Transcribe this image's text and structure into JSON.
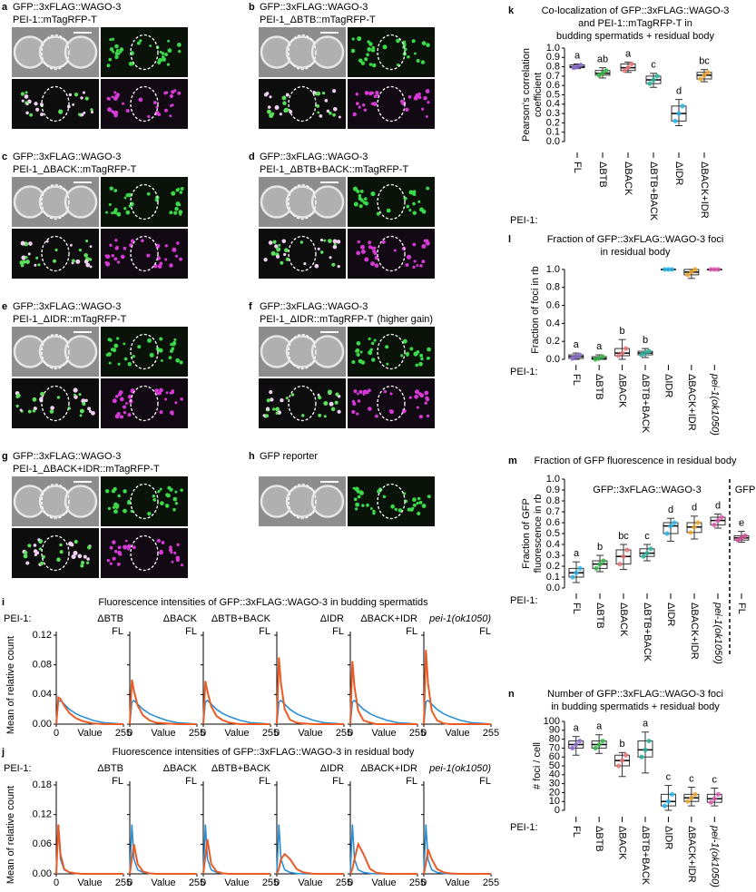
{
  "images": [
    {
      "label": "a",
      "lines": [
        "GFP::3xFLAG::WAGO-3",
        "PEI-1::mTagRFP-T"
      ]
    },
    {
      "label": "b",
      "lines": [
        "GFP::3xFLAG::WAGO-3",
        "PEI-1_ΔBTB::mTagRFP-T"
      ]
    },
    {
      "label": "c",
      "lines": [
        "GFP::3xFLAG::WAGO-3",
        "PEI-1_ΔBACK::mTagRFP-T"
      ]
    },
    {
      "label": "d",
      "lines": [
        "GFP::3xFLAG::WAGO-3",
        "PEI-1_ΔBTB+BACK::mTagRFP-T"
      ]
    },
    {
      "label": "e",
      "lines": [
        "GFP::3xFLAG::WAGO-3",
        "PEI-1_ΔIDR::mTagRFP-T"
      ]
    },
    {
      "label": "f",
      "lines": [
        "GFP::3xFLAG::WAGO-3",
        "PEI-1_ΔIDR::mTagRFP-T"
      ],
      "note": "(higher gain)"
    },
    {
      "label": "g",
      "lines": [
        "GFP::3xFLAG::WAGO-3",
        "PEI-1_ΔBACK+IDR::mTagRFP-T"
      ]
    },
    {
      "label": "h",
      "lines": [
        "GFP reporter"
      ]
    }
  ],
  "chart_data": [
    {
      "type": "line",
      "label": "i",
      "title": "Fluorescence intensities of GFP::3xFLAG::WAGO-3 in budding spermatids",
      "row_label": "PEI-1:",
      "ylabel": "Mean of relative count",
      "xlabel": "Value",
      "x": [
        0,
        8,
        16,
        30,
        50,
        75,
        100,
        140,
        180,
        220,
        255
      ],
      "xlim": [
        0,
        255
      ],
      "xticks": [
        0,
        255
      ],
      "ylim": [
        0,
        0.12
      ],
      "yticks": [
        {
          "value": 0,
          "label": "0.00"
        },
        0.04,
        0.08,
        0.12
      ],
      "panels": [
        {
          "series": [
            {
              "name": "ΔBTB",
              "color": "#ea5a24",
              "values": [
                0,
                0.036,
                0.034,
                0.025,
                0.015,
                0.008,
                0.004,
                0.001,
                0,
                0,
                0
              ]
            },
            {
              "name": "FL",
              "color": "#2b8fd6",
              "values": [
                0,
                0.03,
                0.032,
                0.027,
                0.02,
                0.014,
                0.01,
                0.005,
                0.002,
                0.001,
                0
              ]
            }
          ]
        },
        {
          "series": [
            {
              "name": "ΔBACK",
              "color": "#ea5a24",
              "values": [
                0,
                0.06,
                0.045,
                0.025,
                0.012,
                0.005,
                0.002,
                0.001,
                0,
                0,
                0
              ]
            },
            {
              "name": "FL",
              "color": "#2b8fd6",
              "values": [
                0,
                0.03,
                0.032,
                0.027,
                0.02,
                0.014,
                0.01,
                0.005,
                0.002,
                0.001,
                0
              ]
            }
          ]
        },
        {
          "series": [
            {
              "name": "ΔBTB+BACK",
              "color": "#ea5a24",
              "values": [
                0,
                0.058,
                0.044,
                0.024,
                0.011,
                0.005,
                0.002,
                0,
                0,
                0,
                0
              ]
            },
            {
              "name": "FL",
              "color": "#2b8fd6",
              "values": [
                0,
                0.03,
                0.032,
                0.027,
                0.02,
                0.014,
                0.01,
                0.005,
                0.002,
                0.001,
                0
              ]
            }
          ]
        },
        {
          "series": [
            {
              "name": "ΔIDR",
              "color": "#ea5a24",
              "values": [
                0,
                0.09,
                0.055,
                0.02,
                0.006,
                0.002,
                0.001,
                0,
                0,
                0,
                0
              ]
            },
            {
              "name": "FL",
              "color": "#2b8fd6",
              "values": [
                0,
                0.03,
                0.032,
                0.027,
                0.02,
                0.014,
                0.01,
                0.005,
                0.002,
                0.001,
                0
              ]
            }
          ]
        },
        {
          "series": [
            {
              "name": "ΔBACK+IDR",
              "color": "#ea5a24",
              "values": [
                0,
                0.085,
                0.05,
                0.018,
                0.005,
                0.002,
                0,
                0,
                0,
                0,
                0
              ]
            },
            {
              "name": "FL",
              "color": "#2b8fd6",
              "values": [
                0,
                0.03,
                0.032,
                0.027,
                0.02,
                0.014,
                0.01,
                0.005,
                0.002,
                0.001,
                0
              ]
            }
          ]
        },
        {
          "series": [
            {
              "name": "pei-1(ok1050)",
              "color": "#ea5a24",
              "values": [
                0,
                0.1,
                0.055,
                0.018,
                0.005,
                0.001,
                0,
                0,
                0,
                0,
                0
              ]
            },
            {
              "name": "FL",
              "color": "#2b8fd6",
              "values": [
                0,
                0.03,
                0.032,
                0.027,
                0.02,
                0.014,
                0.01,
                0.005,
                0.002,
                0.001,
                0
              ]
            }
          ]
        }
      ]
    },
    {
      "type": "line",
      "label": "j",
      "title": "Fluorescence intensities of GFP::3xFLAG::WAGO-3 in residual body",
      "row_label": "PEI-1:",
      "ylabel": "Mean of relative count",
      "xlabel": "Value",
      "x": [
        0,
        8,
        16,
        30,
        50,
        75,
        100,
        140,
        180,
        220,
        255
      ],
      "xlim": [
        0,
        255
      ],
      "xticks": [
        0,
        255
      ],
      "ylim": [
        0,
        0.18
      ],
      "yticks": [
        {
          "value": 0,
          "label": "0.00"
        },
        0.06,
        0.12,
        0.18
      ],
      "panels": [
        {
          "series": [
            {
              "name": "ΔBTB",
              "color": "#ea5a24",
              "values": [
                0,
                0.1,
                0.04,
                0.01,
                0.003,
                0.001,
                0,
                0,
                0,
                0,
                0
              ]
            },
            {
              "name": "FL",
              "color": "#2b8fd6",
              "values": [
                0,
                0.1,
                0.03,
                0.008,
                0.003,
                0.001,
                0,
                0,
                0,
                0,
                0
              ]
            }
          ]
        },
        {
          "series": [
            {
              "name": "ΔBACK",
              "color": "#ea5a24",
              "values": [
                0,
                0.03,
                0.06,
                0.02,
                0.005,
                0.001,
                0,
                0,
                0,
                0,
                0
              ]
            },
            {
              "name": "FL",
              "color": "#2b8fd6",
              "values": [
                0,
                0.1,
                0.03,
                0.008,
                0.003,
                0.001,
                0,
                0,
                0,
                0,
                0
              ]
            }
          ]
        },
        {
          "series": [
            {
              "name": "ΔBTB+BACK",
              "color": "#ea5a24",
              "values": [
                0,
                0.035,
                0.07,
                0.02,
                0.005,
                0.001,
                0,
                0,
                0,
                0,
                0
              ]
            },
            {
              "name": "FL",
              "color": "#2b8fd6",
              "values": [
                0,
                0.1,
                0.03,
                0.008,
                0.003,
                0.001,
                0,
                0,
                0,
                0,
                0
              ]
            }
          ]
        },
        {
          "series": [
            {
              "name": "ΔIDR",
              "color": "#ea5a24",
              "values": [
                0,
                0.01,
                0.03,
                0.04,
                0.03,
                0.01,
                0.003,
                0,
                0,
                0,
                0
              ]
            },
            {
              "name": "FL",
              "color": "#2b8fd6",
              "values": [
                0,
                0.1,
                0.03,
                0.008,
                0.003,
                0.001,
                0,
                0,
                0,
                0,
                0
              ]
            }
          ]
        },
        {
          "series": [
            {
              "name": "ΔBACK+IDR",
              "color": "#ea5a24",
              "values": [
                0,
                0.01,
                0.03,
                0.06,
                0.04,
                0.01,
                0.002,
                0,
                0,
                0,
                0
              ]
            },
            {
              "name": "FL",
              "color": "#2b8fd6",
              "values": [
                0,
                0.1,
                0.03,
                0.008,
                0.003,
                0.001,
                0,
                0,
                0,
                0,
                0
              ]
            }
          ]
        },
        {
          "series": [
            {
              "name": "pei-1(ok1050)",
              "color": "#ea5a24",
              "values": [
                0,
                0.02,
                0.05,
                0.03,
                0.01,
                0.003,
                0.001,
                0,
                0,
                0,
                0
              ]
            },
            {
              "name": "FL",
              "color": "#2b8fd6",
              "values": [
                0,
                0.1,
                0.03,
                0.008,
                0.003,
                0.001,
                0,
                0,
                0,
                0,
                0
              ]
            }
          ]
        }
      ]
    },
    {
      "type": "box",
      "label": "k",
      "title": [
        "Co-localization of GFP::3xFLAG::WAGO-3",
        "and PEI-1::mTagRFP-T in",
        "budding spermatids + residual body"
      ],
      "ylabel": [
        "Pearson's correlation",
        "coefficient"
      ],
      "row_label": "PEI-1:",
      "categories": [
        "FL",
        "ΔBTB",
        "ΔBACK",
        "ΔBTB+BACK",
        "ΔIDR",
        "ΔBACK+IDR"
      ],
      "colors": [
        "#8e6fd1",
        "#3bb54a",
        "#e8777a",
        "#2bb3a0",
        "#2fb5e6",
        "#f0a830"
      ],
      "letters": [
        "a",
        "ab",
        "a",
        "c",
        "d",
        "bc"
      ],
      "boxes": [
        {
          "min": 0.78,
          "q1": 0.79,
          "median": 0.8,
          "q3": 0.82,
          "max": 0.83
        },
        {
          "min": 0.68,
          "q1": 0.71,
          "median": 0.73,
          "q3": 0.76,
          "max": 0.79
        },
        {
          "min": 0.74,
          "q1": 0.76,
          "median": 0.79,
          "q3": 0.83,
          "max": 0.85
        },
        {
          "min": 0.58,
          "q1": 0.62,
          "median": 0.66,
          "q3": 0.7,
          "max": 0.73
        },
        {
          "min": 0.17,
          "q1": 0.22,
          "median": 0.3,
          "q3": 0.38,
          "max": 0.45
        },
        {
          "min": 0.64,
          "q1": 0.67,
          "median": 0.71,
          "q3": 0.74,
          "max": 0.77
        }
      ],
      "ylim": [
        0,
        1
      ],
      "yticks": [
        {
          "value": 0,
          "label": "0.0"
        },
        0.1,
        0.2,
        0.3,
        0.4,
        0.5,
        0.6,
        0.7,
        0.8,
        0.9,
        {
          "value": 1,
          "label": "1.0"
        }
      ]
    },
    {
      "type": "box",
      "label": "l",
      "title": [
        "Fraction of GFP::3xFLAG::WAGO-3 foci",
        "in residual body"
      ],
      "ylabel": [
        "Fraction of foci in rb"
      ],
      "row_label": "PEI-1:",
      "categories": [
        "FL",
        "ΔBTB",
        "ΔBACK",
        "ΔBTB+BACK",
        "ΔIDR",
        "ΔBACK+IDR",
        "pei-1(ok1050)"
      ],
      "colors": [
        "#8e6fd1",
        "#3bb54a",
        "#e8777a",
        "#2bb3a0",
        "#2fb5e6",
        "#f0a830",
        "#e05ab0"
      ],
      "letters": [
        "a",
        "a",
        "b",
        "b",
        null,
        null,
        null
      ],
      "boxes": [
        {
          "min": 0,
          "q1": 0.01,
          "median": 0.03,
          "q3": 0.05,
          "max": 0.07
        },
        {
          "min": 0,
          "q1": 0,
          "median": 0.01,
          "q3": 0.03,
          "max": 0.05
        },
        {
          "min": 0,
          "q1": 0.04,
          "median": 0.07,
          "q3": 0.12,
          "max": 0.22
        },
        {
          "min": 0.02,
          "q1": 0.05,
          "median": 0.07,
          "q3": 0.09,
          "max": 0.12
        },
        {
          "min": 1,
          "q1": 1,
          "median": 1,
          "q3": 1,
          "max": 1
        },
        {
          "min": 0.9,
          "q1": 0.94,
          "median": 0.97,
          "q3": 1,
          "max": 1
        },
        {
          "min": 1,
          "q1": 1,
          "median": 1,
          "q3": 1,
          "max": 1
        }
      ],
      "ylim": [
        0,
        1.1
      ],
      "yticks": [
        {
          "value": 0,
          "label": "0.0"
        },
        0.2,
        0.4,
        0.6,
        0.8,
        {
          "value": 1,
          "label": "1.0"
        }
      ]
    },
    {
      "type": "box",
      "label": "m",
      "title": [
        "Fraction of GFP fluorescence in residual body"
      ],
      "ylabel": [
        "Fraction of GFP",
        "fluorescence in rb"
      ],
      "row_label": "PEI-1:",
      "group_labels": [
        "GFP::3xFLAG::WAGO-3",
        "GFP"
      ],
      "categories": [
        "FL",
        "ΔBTB",
        "ΔBACK",
        "ΔBTB+BACK",
        "ΔIDR",
        "ΔBACK+IDR",
        "pei-1(ok1050)",
        "FL"
      ],
      "colors": [
        "#2fb5e6",
        "#3bb54a",
        "#e8777a",
        "#2bb3a0",
        "#2fb5e6",
        "#f0a830",
        "#e05ab0",
        "#d9509a"
      ],
      "letters": [
        "a",
        "b",
        "bc",
        "c",
        "d",
        "d",
        "d",
        "e"
      ],
      "boxes": [
        {
          "min": 0.05,
          "q1": 0.1,
          "median": 0.14,
          "q3": 0.18,
          "max": 0.24
        },
        {
          "min": 0.15,
          "q1": 0.18,
          "median": 0.22,
          "q3": 0.25,
          "max": 0.3
        },
        {
          "min": 0.17,
          "q1": 0.22,
          "median": 0.29,
          "q3": 0.35,
          "max": 0.4
        },
        {
          "min": 0.25,
          "q1": 0.29,
          "median": 0.32,
          "q3": 0.36,
          "max": 0.4
        },
        {
          "min": 0.43,
          "q1": 0.5,
          "median": 0.57,
          "q3": 0.6,
          "max": 0.64
        },
        {
          "min": 0.45,
          "q1": 0.51,
          "median": 0.56,
          "q3": 0.6,
          "max": 0.66
        },
        {
          "min": 0.55,
          "q1": 0.58,
          "median": 0.62,
          "q3": 0.65,
          "max": 0.68
        },
        {
          "min": 0.42,
          "q1": 0.44,
          "median": 0.46,
          "q3": 0.48,
          "max": 0.52
        }
      ],
      "ylim": [
        0,
        1
      ],
      "yticks": [
        {
          "value": 0,
          "label": "0.0"
        },
        0.1,
        0.2,
        0.3,
        0.4,
        0.5,
        0.6,
        0.7,
        0.8,
        0.9,
        {
          "value": 1,
          "label": "1.0"
        }
      ]
    },
    {
      "type": "box",
      "label": "n",
      "title": [
        "Number of GFP::3xFLAG::WAGO-3 foci",
        "in budding spermatids + residual body"
      ],
      "ylabel": [
        "# foci / cell"
      ],
      "row_label": "PEI-1:",
      "categories": [
        "FL",
        "ΔBTB",
        "ΔBACK",
        "ΔBTB+BACK",
        "ΔIDR",
        "ΔBACK+IDR",
        "pei-1(ok1050)"
      ],
      "colors": [
        "#8e6fd1",
        "#3bb54a",
        "#e8777a",
        "#2bb3a0",
        "#2fb5e6",
        "#f0a830",
        "#e05ab0"
      ],
      "letters": [
        "a",
        "a",
        "b",
        "a",
        "c",
        "c",
        "c"
      ],
      "boxes": [
        {
          "min": 62,
          "q1": 70,
          "median": 74,
          "q3": 78,
          "max": 83
        },
        {
          "min": 64,
          "q1": 70,
          "median": 74,
          "q3": 78,
          "max": 85
        },
        {
          "min": 38,
          "q1": 50,
          "median": 56,
          "q3": 62,
          "max": 65
        },
        {
          "min": 42,
          "q1": 60,
          "median": 68,
          "q3": 78,
          "max": 88
        },
        {
          "min": 0,
          "q1": 5,
          "median": 10,
          "q3": 18,
          "max": 28
        },
        {
          "min": 5,
          "q1": 10,
          "median": 14,
          "q3": 18,
          "max": 26
        },
        {
          "min": 5,
          "q1": 9,
          "median": 13,
          "q3": 18,
          "max": 25
        }
      ],
      "ylim": [
        0,
        100
      ],
      "yticks": [
        0,
        10,
        20,
        30,
        40,
        50,
        60,
        70,
        80,
        90,
        100
      ]
    }
  ]
}
